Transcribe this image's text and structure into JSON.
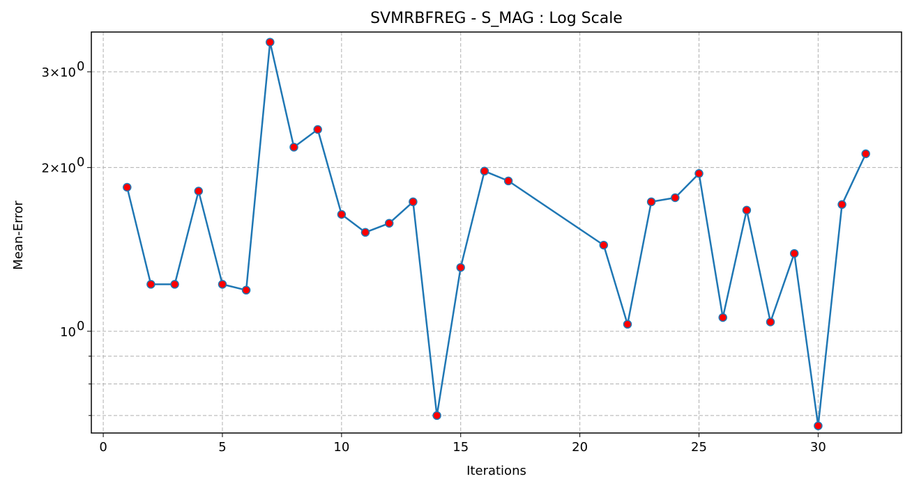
{
  "chart_data": {
    "type": "line",
    "title": "SVMRBFREG - S_MAG : Log Scale",
    "xlabel": "Iterations",
    "ylabel": "Mean-Error",
    "yscale": "log",
    "xlim": [
      -0.5,
      33.5
    ],
    "ylim": [
      0.65,
      3.55
    ],
    "x_ticks": [
      0,
      5,
      10,
      15,
      20,
      25,
      30
    ],
    "y_major_ticks": [
      1,
      2,
      3
    ],
    "y_major_tick_labels": [
      "10",
      "2×10",
      "3×10"
    ],
    "y_minor_ticks": [
      0.7,
      0.8,
      0.9
    ],
    "grid": true,
    "legend": "none",
    "line_color": "#1f77b4",
    "marker_color": "#ff0000",
    "series": [
      {
        "x": [
          1,
          2,
          3,
          4,
          5,
          6,
          7,
          8,
          9,
          10,
          11,
          12,
          13,
          14,
          15,
          16,
          17,
          21,
          22,
          23,
          24,
          25,
          26,
          27,
          28,
          29,
          30,
          31,
          32
        ],
        "values": [
          1.84,
          1.22,
          1.22,
          1.81,
          1.22,
          1.19,
          3.4,
          2.18,
          2.35,
          1.64,
          1.52,
          1.58,
          1.73,
          0.7,
          1.31,
          1.97,
          1.89,
          1.44,
          1.03,
          1.73,
          1.76,
          1.95,
          1.06,
          1.67,
          1.04,
          1.39,
          0.67,
          1.71,
          2.12
        ]
      }
    ]
  }
}
